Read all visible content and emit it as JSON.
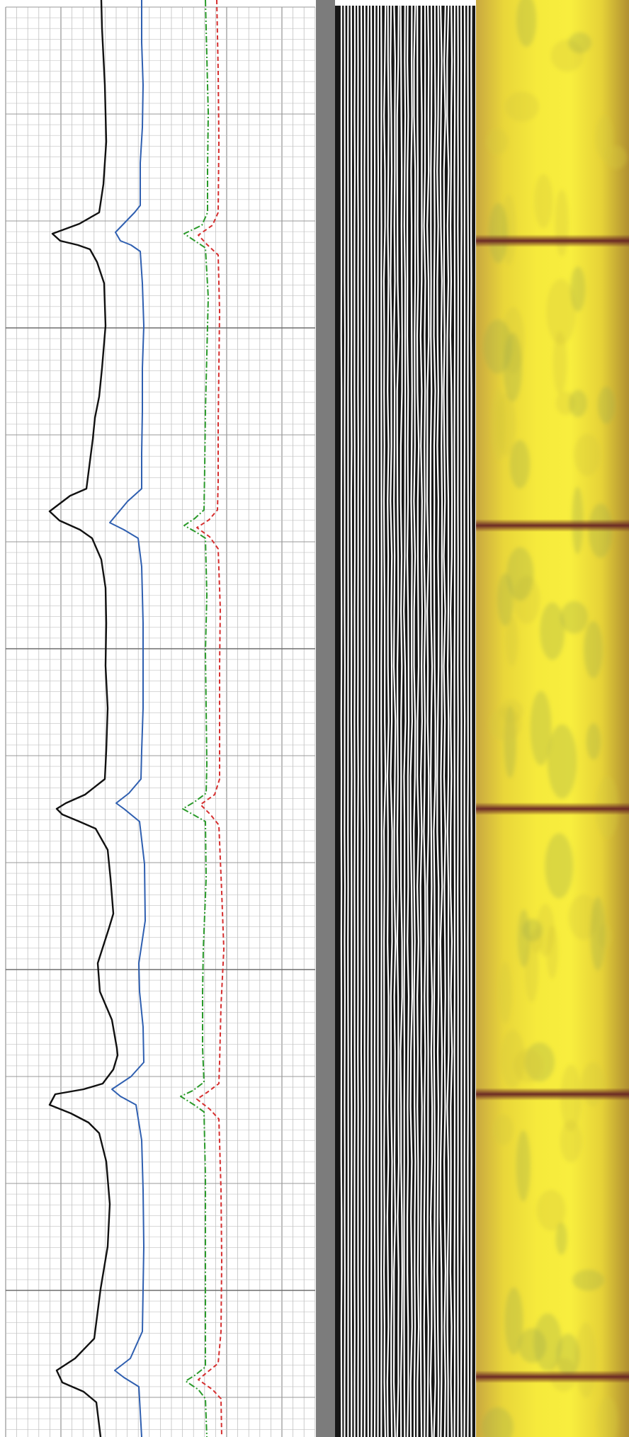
{
  "chart_data": {
    "type": "line",
    "title": "",
    "xlabel": "",
    "ylabel": "",
    "grid": true,
    "depth_range": [
      0,
      2029
    ],
    "tracks": [
      {
        "name": "track-1-curves",
        "series": [
          {
            "name": "",
            "color": "#111111",
            "style": "solid",
            "points": [
              [
                0,
                143
              ],
              [
                40,
                144
              ],
              [
                120,
                148
              ],
              [
                200,
                150
              ],
              [
                260,
                146
              ],
              [
                300,
                140
              ],
              [
                316,
                112
              ],
              [
                330,
                74
              ],
              [
                340,
                85
              ],
              [
                346,
                110
              ],
              [
                352,
                127
              ],
              [
                370,
                137
              ],
              [
                400,
                147
              ],
              [
                460,
                149
              ],
              [
                520,
                144
              ],
              [
                560,
                140
              ],
              [
                590,
                134
              ],
              [
                620,
                131
              ],
              [
                690,
                122
              ],
              [
                700,
                99
              ],
              [
                722,
                70
              ],
              [
                735,
                84
              ],
              [
                748,
                113
              ],
              [
                760,
                130
              ],
              [
                790,
                143
              ],
              [
                830,
                149
              ],
              [
                880,
                150
              ],
              [
                940,
                149
              ],
              [
                1000,
                152
              ],
              [
                1060,
                150
              ],
              [
                1100,
                148
              ],
              [
                1122,
                120
              ],
              [
                1134,
                93
              ],
              [
                1142,
                80
              ],
              [
                1150,
                88
              ],
              [
                1160,
                112
              ],
              [
                1170,
                135
              ],
              [
                1200,
                152
              ],
              [
                1240,
                156
              ],
              [
                1290,
                160
              ],
              [
                1310,
                154
              ],
              [
                1360,
                138
              ],
              [
                1400,
                141
              ],
              [
                1440,
                158
              ],
              [
                1480,
                165
              ],
              [
                1490,
                166
              ],
              [
                1510,
                160
              ],
              [
                1530,
                145
              ],
              [
                1538,
                118
              ],
              [
                1545,
                78
              ],
              [
                1560,
                70
              ],
              [
                1572,
                100
              ],
              [
                1585,
                125
              ],
              [
                1600,
                140
              ],
              [
                1640,
                150
              ],
              [
                1700,
                155
              ],
              [
                1760,
                152
              ],
              [
                1820,
                142
              ],
              [
                1890,
                133
              ],
              [
                1918,
                106
              ],
              [
                1935,
                80
              ],
              [
                1952,
                88
              ],
              [
                1965,
                118
              ],
              [
                1980,
                136
              ],
              [
                2029,
                142
              ]
            ]
          },
          {
            "name": "",
            "color": "#2f5fb0",
            "style": "solid",
            "points": [
              [
                0,
                200
              ],
              [
                60,
                200
              ],
              [
                120,
                202
              ],
              [
                180,
                201
              ],
              [
                230,
                198
              ],
              [
                290,
                198
              ],
              [
                300,
                190
              ],
              [
                328,
                163
              ],
              [
                340,
                170
              ],
              [
                346,
                185
              ],
              [
                355,
                198
              ],
              [
                400,
                201
              ],
              [
                460,
                203
              ],
              [
                520,
                201
              ],
              [
                580,
                201
              ],
              [
                640,
                200
              ],
              [
                690,
                200
              ],
              [
                708,
                180
              ],
              [
                738,
                155
              ],
              [
                748,
                175
              ],
              [
                760,
                195
              ],
              [
                800,
                200
              ],
              [
                880,
                202
              ],
              [
                940,
                202
              ],
              [
                1000,
                202
              ],
              [
                1060,
                200
              ],
              [
                1100,
                199
              ],
              [
                1120,
                182
              ],
              [
                1134,
                164
              ],
              [
                1142,
                175
              ],
              [
                1160,
                197
              ],
              [
                1220,
                204
              ],
              [
                1300,
                205
              ],
              [
                1360,
                196
              ],
              [
                1400,
                197
              ],
              [
                1450,
                202
              ],
              [
                1500,
                203
              ],
              [
                1520,
                185
              ],
              [
                1538,
                158
              ],
              [
                1548,
                170
              ],
              [
                1560,
                192
              ],
              [
                1610,
                200
              ],
              [
                1680,
                202
              ],
              [
                1760,
                203
              ],
              [
                1820,
                202
              ],
              [
                1880,
                201
              ],
              [
                1918,
                184
              ],
              [
                1935,
                162
              ],
              [
                1945,
                175
              ],
              [
                1958,
                196
              ],
              [
                2029,
                200
              ]
            ]
          },
          {
            "name": "",
            "color": "#2a9a2a",
            "style": "dashdot",
            "points": [
              [
                0,
                290
              ],
              [
                80,
                292
              ],
              [
                160,
                294
              ],
              [
                240,
                293
              ],
              [
                300,
                293
              ],
              [
                318,
                285
              ],
              [
                330,
                260
              ],
              [
                340,
                275
              ],
              [
                350,
                290
              ],
              [
                420,
                294
              ],
              [
                500,
                292
              ],
              [
                580,
                290
              ],
              [
                660,
                289
              ],
              [
                720,
                288
              ],
              [
                732,
                275
              ],
              [
                742,
                260
              ],
              [
                752,
                278
              ],
              [
                760,
                290
              ],
              [
                840,
                292
              ],
              [
                920,
                290
              ],
              [
                1000,
                291
              ],
              [
                1080,
                292
              ],
              [
                1120,
                291
              ],
              [
                1132,
                275
              ],
              [
                1142,
                258
              ],
              [
                1152,
                276
              ],
              [
                1160,
                290
              ],
              [
                1240,
                291
              ],
              [
                1340,
                287
              ],
              [
                1400,
                286
              ],
              [
                1480,
                286
              ],
              [
                1528,
                288
              ],
              [
                1540,
                272
              ],
              [
                1548,
                255
              ],
              [
                1560,
                274
              ],
              [
                1570,
                288
              ],
              [
                1660,
                290
              ],
              [
                1760,
                290
              ],
              [
                1860,
                290
              ],
              [
                1930,
                290
              ],
              [
                1942,
                275
              ],
              [
                1950,
                262
              ],
              [
                1962,
                280
              ],
              [
                1975,
                290
              ],
              [
                2029,
                292
              ]
            ]
          },
          {
            "name": "",
            "color": "#d62f2f",
            "style": "dashed",
            "points": [
              [
                0,
                306
              ],
              [
                100,
                308
              ],
              [
                200,
                309
              ],
              [
                300,
                308
              ],
              [
                318,
                300
              ],
              [
                332,
                280
              ],
              [
                345,
                292
              ],
              [
                360,
                308
              ],
              [
                440,
                310
              ],
              [
                520,
                309
              ],
              [
                600,
                308
              ],
              [
                680,
                308
              ],
              [
                720,
                307
              ],
              [
                734,
                295
              ],
              [
                745,
                278
              ],
              [
                758,
                296
              ],
              [
                775,
                308
              ],
              [
                860,
                311
              ],
              [
                940,
                310
              ],
              [
                1020,
                310
              ],
              [
                1100,
                310
              ],
              [
                1122,
                303
              ],
              [
                1136,
                283
              ],
              [
                1150,
                297
              ],
              [
                1165,
                309
              ],
              [
                1260,
                313
              ],
              [
                1340,
                316
              ],
              [
                1420,
                312
              ],
              [
                1500,
                310
              ],
              [
                1530,
                309
              ],
              [
                1542,
                293
              ],
              [
                1552,
                278
              ],
              [
                1566,
                296
              ],
              [
                1580,
                309
              ],
              [
                1680,
                312
              ],
              [
                1780,
                313
              ],
              [
                1880,
                312
              ],
              [
                1925,
                308
              ],
              [
                1938,
                292
              ],
              [
                1948,
                280
              ],
              [
                1962,
                300
              ],
              [
                1975,
                312
              ],
              [
                2029,
                313
              ]
            ]
          }
        ]
      },
      {
        "name": "track-2-bar",
        "color": "#7c7c7c"
      },
      {
        "name": "track-3-striped-image",
        "colors": [
          "#161616",
          "#ffffff"
        ]
      },
      {
        "name": "track-4-core-image",
        "base_color": "#f4e33a",
        "edge_color": "#b0932c",
        "bands": [
          {
            "depth": 340,
            "color": "#6b2a24"
          },
          {
            "depth": 742,
            "color": "#6b2a24"
          },
          {
            "depth": 1142,
            "color": "#6b2a24"
          },
          {
            "depth": 1545,
            "color": "#6b2a24"
          },
          {
            "depth": 1944,
            "color": "#6b2a24"
          }
        ]
      }
    ]
  }
}
